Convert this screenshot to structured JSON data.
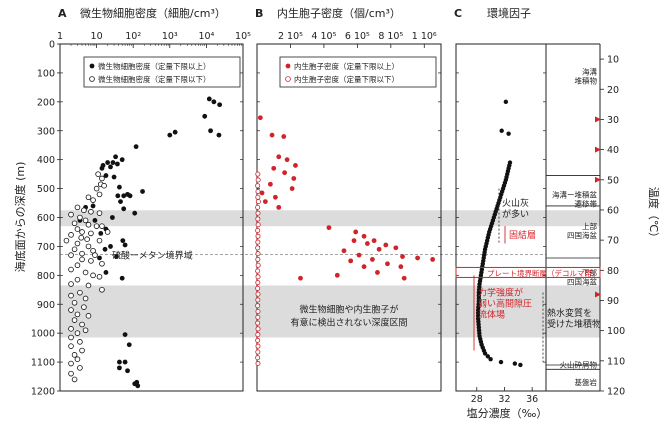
{
  "figure": {
    "y_axis_label": "海底面からの深度 (m)",
    "depth_ticks": [
      0,
      100,
      200,
      300,
      400,
      500,
      600,
      700,
      800,
      900,
      1000,
      1100,
      1200
    ],
    "bands": [
      {
        "from": 575,
        "to": 630
      },
      {
        "from": 835,
        "to": 1015
      }
    ],
    "smt_depth": 728
  },
  "chart_data": [
    {
      "type": "scatter",
      "panel": "A",
      "title": "微生物細胞密度（細胞/cm³）",
      "x_scale": "log",
      "xlim": [
        1,
        100000
      ],
      "x_tick_labels": [
        {
          "v": 1,
          "t": "1"
        },
        {
          "v": 10,
          "t": "10"
        },
        {
          "v": 100,
          "t": "10²"
        },
        {
          "v": 1000,
          "t": "10³"
        },
        {
          "v": 10000,
          "t": "10⁴"
        },
        {
          "v": 100000,
          "t": "10⁵"
        }
      ],
      "ylim": [
        0,
        1200
      ],
      "legend": [
        "微生物細胞密度（定量下限以上）",
        "微生物細胞密度（定量下限以下）"
      ],
      "series": [
        {
          "name": "微生物細胞密度（定量下限以上）",
          "points": [
            [
              12000,
              190
            ],
            [
              16000,
              200
            ],
            [
              23000,
              210
            ],
            [
              9000,
              250
            ],
            [
              13000,
              300
            ],
            [
              22000,
              315
            ],
            [
              1400,
              305
            ],
            [
              1000,
              315
            ],
            [
              120,
              355
            ],
            [
              33,
              390
            ],
            [
              50,
              400
            ],
            [
              28,
              410
            ],
            [
              20,
              410
            ],
            [
              37,
              415
            ],
            [
              15,
              420
            ],
            [
              24,
              425
            ],
            [
              14,
              430
            ],
            [
              18,
              455
            ],
            [
              30,
              460
            ],
            [
              42,
              495
            ],
            [
              70,
              520
            ],
            [
              55,
              525
            ],
            [
              38,
              525
            ],
            [
              82,
              525
            ],
            [
              45,
              545
            ],
            [
              180,
              510
            ],
            [
              8,
              560
            ],
            [
              5,
              565
            ],
            [
              55,
              570
            ],
            [
              110,
              585
            ],
            [
              27,
              600
            ],
            [
              9,
              610
            ],
            [
              18,
              640
            ],
            [
              13,
              655
            ],
            [
              52,
              680
            ],
            [
              60,
              695
            ],
            [
              24,
              700
            ],
            [
              17,
              710
            ],
            [
              35,
              735
            ],
            [
              18,
              790
            ],
            [
              50,
              810
            ],
            [
              3.5,
              610
            ],
            [
              12,
              740
            ],
            [
              60,
              1005
            ],
            [
              78,
              1040
            ],
            [
              42,
              1100
            ],
            [
              60,
              1100
            ],
            [
              42,
              1120
            ],
            [
              70,
              1130
            ],
            [
              125,
              1170
            ],
            [
              110,
              1175
            ],
            [
              133,
              1182
            ]
          ]
        },
        {
          "name": "微生物細胞密度（定量下限以下）",
          "points": [
            [
              11,
              450
            ],
            [
              14,
              465
            ],
            [
              13,
              485
            ],
            [
              16,
              490
            ],
            [
              10,
              500
            ],
            [
              12,
              520
            ],
            [
              6,
              530
            ],
            [
              8,
              540
            ],
            [
              3,
              565
            ],
            [
              4.5,
              575
            ],
            [
              7,
              580
            ],
            [
              12,
              585
            ],
            [
              2,
              590
            ],
            [
              3.5,
              600
            ],
            [
              5,
              610
            ],
            [
              2.5,
              620
            ],
            [
              6,
              625
            ],
            [
              10,
              630
            ],
            [
              14,
              630
            ],
            [
              3,
              640
            ],
            [
              4,
              650
            ],
            [
              7,
              655
            ],
            [
              20,
              650
            ],
            [
              2,
              660
            ],
            [
              3.8,
              670
            ],
            [
              5.5,
              675
            ],
            [
              12,
              680
            ],
            [
              1.5,
              680
            ],
            [
              3,
              690
            ],
            [
              6,
              700
            ],
            [
              2.5,
              710
            ],
            [
              8,
              715
            ],
            [
              4,
              725
            ],
            [
              2,
              730
            ],
            [
              9,
              730
            ],
            [
              4,
              745
            ],
            [
              7,
              750
            ],
            [
              14,
              760
            ],
            [
              3,
              765
            ],
            [
              2,
              780
            ],
            [
              5,
              790
            ],
            [
              8,
              800
            ],
            [
              12,
              805
            ],
            [
              3,
              815
            ],
            [
              2,
              830
            ],
            [
              6,
              835
            ],
            [
              14,
              850
            ],
            [
              3.5,
              860
            ],
            [
              2,
              870
            ],
            [
              5,
              880
            ],
            [
              2.5,
              895
            ],
            [
              4.5,
              910
            ],
            [
              2,
              920
            ],
            [
              3,
              935
            ],
            [
              6,
              940
            ],
            [
              2.5,
              955
            ],
            [
              4,
              970
            ],
            [
              2,
              985
            ],
            [
              5,
              990
            ],
            [
              3,
              1000
            ],
            [
              2,
              1015
            ],
            [
              3.5,
              1030
            ],
            [
              2,
              1045
            ],
            [
              4,
              1060
            ],
            [
              2.5,
              1075
            ],
            [
              3,
              1090
            ],
            [
              2,
              1105
            ],
            [
              3.5,
              1120
            ],
            [
              2,
              1140
            ],
            [
              2.5,
              1160
            ]
          ]
        }
      ]
    },
    {
      "type": "scatter",
      "panel": "B",
      "title": "内生胞子密度（個/cm³）",
      "x_scale": "linear",
      "xlim": [
        0,
        1100000
      ],
      "x_tick_labels": [
        {
          "v": 200000,
          "t": "2 10⁵"
        },
        {
          "v": 400000,
          "t": "4 10⁵"
        },
        {
          "v": 600000,
          "t": "6 10⁵"
        },
        {
          "v": 800000,
          "t": "8 10⁵"
        },
        {
          "v": 1000000,
          "t": "1 10⁶"
        }
      ],
      "ylim": [
        0,
        1200
      ],
      "legend": [
        "内生胞子密度（定量下限以上）",
        "内生胞子密度（定量下限以下）"
      ],
      "series": [
        {
          "name": "内生胞子密度（定量下限以上）",
          "points": [
            [
              20000,
              255
            ],
            [
              90000,
              315
            ],
            [
              160000,
              320
            ],
            [
              130000,
              390
            ],
            [
              180000,
              400
            ],
            [
              230000,
              420
            ],
            [
              100000,
              430
            ],
            [
              165000,
              445
            ],
            [
              220000,
              465
            ],
            [
              80000,
              485
            ],
            [
              210000,
              500
            ],
            [
              30000,
              515
            ],
            [
              110000,
              530
            ],
            [
              50000,
              545
            ],
            [
              130000,
              565
            ],
            [
              430000,
              635
            ],
            [
              590000,
              650
            ],
            [
              640000,
              665
            ],
            [
              580000,
              680
            ],
            [
              660000,
              690
            ],
            [
              700000,
              680
            ],
            [
              770000,
              695
            ],
            [
              830000,
              705
            ],
            [
              730000,
              710
            ],
            [
              520000,
              715
            ],
            [
              610000,
              730
            ],
            [
              870000,
              735
            ],
            [
              960000,
              740
            ],
            [
              1050000,
              745
            ],
            [
              690000,
              745
            ],
            [
              560000,
              750
            ],
            [
              780000,
              760
            ],
            [
              640000,
              770
            ],
            [
              860000,
              770
            ],
            [
              720000,
              790
            ],
            [
              480000,
              800
            ],
            [
              880000,
              810
            ],
            [
              260000,
              810
            ]
          ]
        },
        {
          "name": "内生胞子密度（定量下限以下）",
          "points": [
            [
              5000,
              450
            ],
            [
              7000,
              470
            ],
            [
              4000,
              490
            ],
            [
              6000,
              510
            ],
            [
              5000,
              530
            ],
            [
              8000,
              545
            ],
            [
              4000,
              565
            ],
            [
              6000,
              585
            ],
            [
              5000,
              605
            ],
            [
              7000,
              625
            ],
            [
              4000,
              645
            ],
            [
              6000,
              665
            ],
            [
              5000,
              685
            ],
            [
              4000,
              705
            ],
            [
              6000,
              725
            ],
            [
              5000,
              745
            ],
            [
              7000,
              765
            ],
            [
              4000,
              785
            ],
            [
              6000,
              805
            ],
            [
              5000,
              825
            ],
            [
              4000,
              845
            ],
            [
              6000,
              865
            ],
            [
              5000,
              885
            ],
            [
              4000,
              905
            ],
            [
              6000,
              925
            ],
            [
              5000,
              945
            ],
            [
              4000,
              965
            ],
            [
              6000,
              985
            ],
            [
              5000,
              1005
            ],
            [
              4000,
              1025
            ],
            [
              6000,
              1045
            ],
            [
              5000,
              1065
            ],
            [
              4000,
              1085
            ],
            [
              6000,
              1105
            ]
          ]
        }
      ]
    },
    {
      "type": "line",
      "panel": "C",
      "title": "環境因子",
      "xlabel": "塩分濃度（‰）",
      "xlim": [
        25,
        38
      ],
      "x_ticks": [
        28,
        32,
        36
      ],
      "ylim": [
        0,
        1200
      ],
      "points": [
        [
          32.2,
          200
        ],
        [
          31.6,
          300
        ],
        [
          32.6,
          310
        ],
        [
          32.8,
          410
        ],
        [
          32.5,
          440
        ],
        [
          32.2,
          470
        ],
        [
          31.8,
          500
        ],
        [
          31.4,
          530
        ],
        [
          31.0,
          560
        ],
        [
          30.6,
          590
        ],
        [
          30.2,
          620
        ],
        [
          29.8,
          650
        ],
        [
          29.5,
          680
        ],
        [
          29.2,
          710
        ],
        [
          29.0,
          740
        ],
        [
          28.8,
          770
        ],
        [
          28.6,
          800
        ],
        [
          28.4,
          830
        ],
        [
          28.3,
          860
        ],
        [
          28.3,
          890
        ],
        [
          28.2,
          920
        ],
        [
          28.2,
          950
        ],
        [
          28.3,
          980
        ],
        [
          28.4,
          1010
        ],
        [
          28.7,
          1040
        ],
        [
          29.2,
          1070
        ],
        [
          30.0,
          1090
        ],
        [
          31.5,
          1100
        ],
        [
          33.5,
          1105
        ],
        [
          34.3,
          1110
        ]
      ]
    }
  ],
  "right_axis": {
    "title": "温度（℃）",
    "ticks": [
      10,
      20,
      30,
      40,
      50,
      60,
      70,
      80,
      90,
      100,
      110,
      120
    ],
    "arrow_temps": [
      30,
      40,
      50,
      88
    ]
  },
  "strat": {
    "units": [
      {
        "label": "海溝\n堆積物",
        "y": 105,
        "bold": true
      },
      {
        "label": "海溝ー堆積盆\n遷移帯",
        "y": 530,
        "bold": false
      },
      {
        "label": "上部\n四国海盆",
        "y": 640,
        "bold": false
      },
      {
        "label": "下部\n四国海盆",
        "y": 800,
        "bold": false
      },
      {
        "label": "火山砕屑物",
        "y": 1118,
        "bold": false
      },
      {
        "label": "基盤岩",
        "y": 1180,
        "bold": false
      }
    ],
    "boundaries": [
      455,
      560,
      740,
      1110,
      1125
    ]
  },
  "annotations": {
    "smt": "硫酸ーメタン境界域",
    "no_detection": "微生物細胞や内生胞子が\n有意に検出されない深度区間",
    "volcanic_ash": "火山灰\nが多い",
    "cemented": "固結層",
    "plate_boundary": "プレート境界断層（デコルマ帯）",
    "weak_zone": "力学強度が\n弱い高間隙圧\n流体場",
    "hydrothermal": "熱水変質を\n受けた堆積物"
  }
}
